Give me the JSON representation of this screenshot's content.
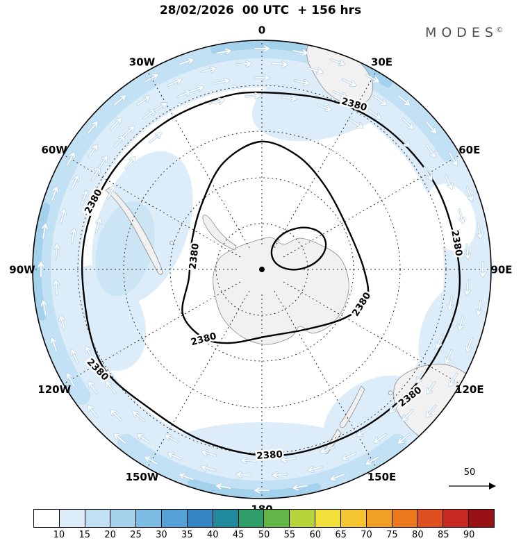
{
  "header": {
    "title": "28/02/2026  00 UTC  + 156 hrs",
    "brand": "MODES",
    "brand_mark": "©"
  },
  "map": {
    "contour_value": "2380",
    "longitude_labels": [
      {
        "label": "0",
        "angle": 0
      },
      {
        "label": "30E",
        "angle": 30
      },
      {
        "label": "60E",
        "angle": 60
      },
      {
        "label": "90E",
        "angle": 90
      },
      {
        "label": "120E",
        "angle": 120
      },
      {
        "label": "150E",
        "angle": 150
      },
      {
        "label": "180",
        "angle": 180
      },
      {
        "label": "150W",
        "angle": 210
      },
      {
        "label": "120W",
        "angle": 240
      },
      {
        "label": "90W",
        "angle": 270
      },
      {
        "label": "60W",
        "angle": 300
      },
      {
        "label": "30W",
        "angle": 330
      }
    ]
  },
  "reference_arrow": {
    "label": "50"
  },
  "colorbar": {
    "ticks": [
      "10",
      "15",
      "20",
      "25",
      "30",
      "35",
      "40",
      "45",
      "50",
      "55",
      "60",
      "65",
      "70",
      "75",
      "80",
      "85",
      "90"
    ],
    "colors": [
      "#ffffff",
      "#dcedf9",
      "#c3e1f4",
      "#a4d2ed",
      "#7dbde3",
      "#55a2d6",
      "#3385c3",
      "#20899c",
      "#2f9e68",
      "#63b548",
      "#b8d43b",
      "#f2e13a",
      "#f4c52f",
      "#f1a025",
      "#ec7a1c",
      "#e04f20",
      "#c8281f",
      "#971116"
    ]
  },
  "chart_data": {
    "type": "contour-map",
    "title": "28/02/2026  00 UTC  + 156 hrs",
    "brand": "MODES ©",
    "view": "south-polar circular map (Antarctica at center)",
    "contour_levels": [
      2380
    ],
    "contour_labels_shown": [
      "2380",
      "2380",
      "2380",
      "2380",
      "2380",
      "2380",
      "2380",
      "2380",
      "2380"
    ],
    "longitude_labels": [
      "0",
      "30E",
      "60E",
      "90E",
      "120E",
      "150E",
      "180",
      "150W",
      "120W",
      "90W",
      "60W",
      "30W"
    ],
    "shading_scale": {
      "ticks": [
        10,
        15,
        20,
        25,
        30,
        35,
        40,
        45,
        50,
        55,
        60,
        65,
        70,
        75,
        80,
        85,
        90
      ],
      "colors": [
        "#ffffff",
        "#dcedf9",
        "#c3e1f4",
        "#a4d2ed",
        "#7dbde3",
        "#55a2d6",
        "#3385c3",
        "#20899c",
        "#2f9e68",
        "#63b548",
        "#b8d43b",
        "#f2e13a",
        "#f4c52f",
        "#f1a025",
        "#ec7a1c",
        "#e04f20",
        "#c8281f",
        "#971116"
      ],
      "legend_position": "bottom",
      "shading_visible_range": [
        10,
        25
      ]
    },
    "wind_reference_value": 50,
    "graticule": "dashed latitude circles and 30-degree meridians",
    "center_marker": "pole dot"
  }
}
